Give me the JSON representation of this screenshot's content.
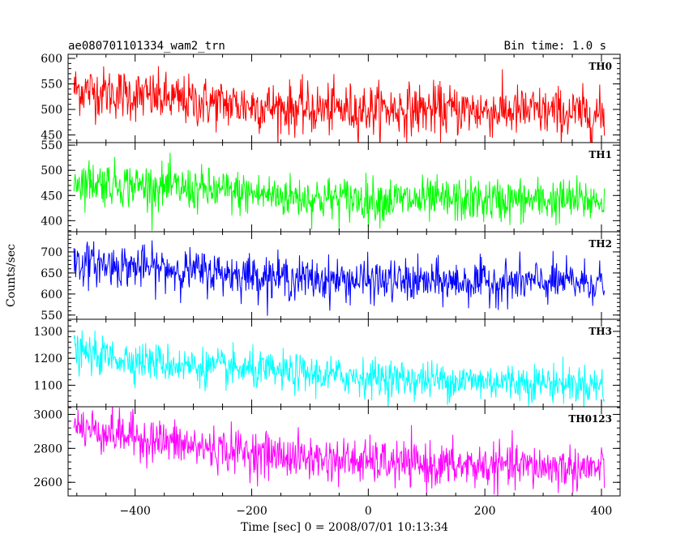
{
  "header": {
    "title": "ae080701101334_wam2_trn",
    "bin_time": "Bin time: 1.0 s"
  },
  "chart_data": {
    "type": "line",
    "xlabel": "Time [sec] 0 = 2008/07/01 10:13:34",
    "ylabel": "Counts/sec",
    "xlim": [
      -515,
      432
    ],
    "xticks": [
      -400,
      -200,
      0,
      200,
      400
    ],
    "x_range": [
      -505,
      405
    ],
    "bin_seconds": 1.0,
    "grid": false,
    "panels": [
      {
        "name": "TH0",
        "color": "#ff0000",
        "ylim": [
          435,
          608
        ],
        "yticks": [
          450,
          500,
          550,
          600
        ],
        "trend": [
          [
            -505,
            540
          ],
          [
            -300,
            515
          ],
          [
            -100,
            500
          ],
          [
            100,
            500
          ],
          [
            300,
            495
          ],
          [
            405,
            488
          ]
        ],
        "noise_sd": 25
      },
      {
        "name": "TH1",
        "color": "#00ff00",
        "ylim": [
          378,
          555
        ],
        "yticks": [
          400,
          450,
          500,
          550
        ],
        "trend": [
          [
            -505,
            480
          ],
          [
            -300,
            462
          ],
          [
            -100,
            445
          ],
          [
            100,
            440
          ],
          [
            300,
            440
          ],
          [
            405,
            440
          ]
        ],
        "noise_sd": 22
      },
      {
        "name": "TH2",
        "color": "#0000ff",
        "ylim": [
          540,
          748
        ],
        "yticks": [
          550,
          600,
          650,
          700
        ],
        "trend": [
          [
            -505,
            675
          ],
          [
            -300,
            655
          ],
          [
            -100,
            635
          ],
          [
            100,
            628
          ],
          [
            300,
            628
          ],
          [
            405,
            628
          ]
        ],
        "noise_sd": 25
      },
      {
        "name": "TH3",
        "color": "#00ffff",
        "ylim": [
          1020,
          1345
        ],
        "yticks": [
          1100,
          1200,
          1300
        ],
        "trend": [
          [
            -505,
            1220
          ],
          [
            -300,
            1170
          ],
          [
            -100,
            1140
          ],
          [
            100,
            1120
          ],
          [
            300,
            1110
          ],
          [
            405,
            1100
          ]
        ],
        "noise_sd": 35
      },
      {
        "name": "TH0123",
        "color": "#ff00ff",
        "ylim": [
          2520,
          3045
        ],
        "yticks": [
          2600,
          2800,
          3000
        ],
        "trend": [
          [
            -505,
            2930
          ],
          [
            -300,
            2810
          ],
          [
            -100,
            2740
          ],
          [
            100,
            2700
          ],
          [
            300,
            2690
          ],
          [
            405,
            2680
          ]
        ],
        "noise_sd": 65
      }
    ]
  }
}
